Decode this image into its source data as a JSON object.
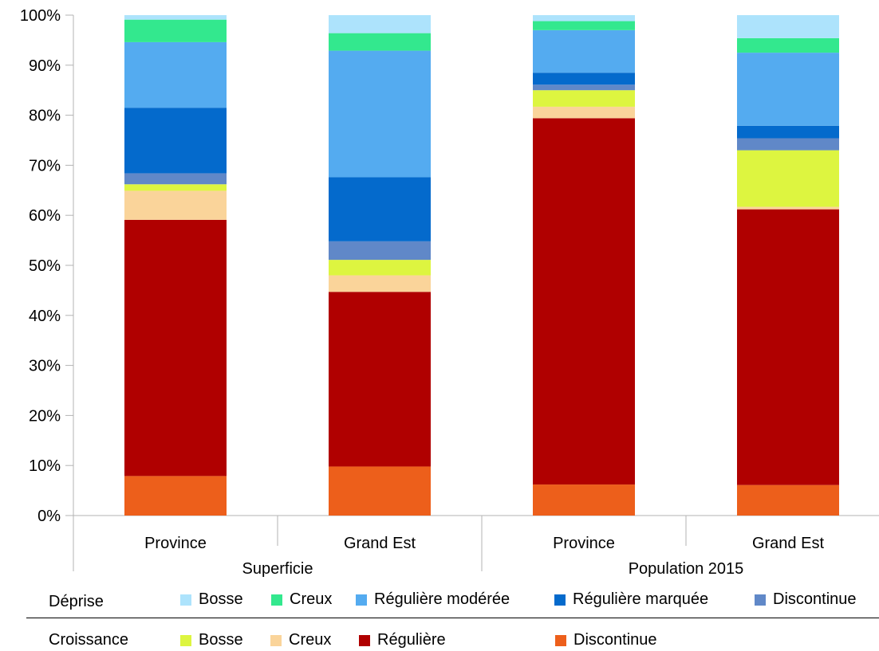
{
  "chart_data": {
    "type": "bar",
    "stacked": true,
    "percent_stacked": true,
    "title": "",
    "xlabel": "",
    "ylabel": "",
    "ylim": [
      0,
      100
    ],
    "y_ticks": [
      "0%",
      "10%",
      "20%",
      "30%",
      "40%",
      "50%",
      "60%",
      "70%",
      "80%",
      "90%",
      "100%"
    ],
    "grid": false,
    "categories": [
      "Province",
      "Grand Est",
      "Province",
      "Grand Est"
    ],
    "category_groups": [
      {
        "label": "Superficie",
        "span": [
          0,
          1
        ]
      },
      {
        "label": "Population 2015",
        "span": [
          2,
          3
        ]
      }
    ],
    "series": [
      {
        "name": "Discontinue",
        "group": "Croissance",
        "color": "#ED5F1B",
        "values": [
          7.9,
          9.8,
          6.2,
          6.1
        ]
      },
      {
        "name": "Régulière",
        "group": "Croissance",
        "color": "#B00000",
        "values": [
          51.2,
          34.9,
          73.2,
          55.1
        ]
      },
      {
        "name": "Creux",
        "group": "Croissance",
        "color": "#FAD49A",
        "values": [
          5.8,
          3.3,
          2.3,
          0.5
        ]
      },
      {
        "name": "Bosse",
        "group": "Croissance",
        "color": "#DDF540",
        "values": [
          1.3,
          3.1,
          3.3,
          11.3
        ]
      },
      {
        "name": "Discontinue",
        "group": "Déprise",
        "color": "#6088C8",
        "values": [
          2.2,
          3.7,
          1.1,
          2.4
        ]
      },
      {
        "name": "Régulière marquée",
        "group": "Déprise",
        "color": "#046ACC",
        "values": [
          13.1,
          12.8,
          2.4,
          2.5
        ]
      },
      {
        "name": "Régulière modérée",
        "group": "Déprise",
        "color": "#54ABF0",
        "values": [
          13.1,
          25.3,
          8.5,
          14.6
        ]
      },
      {
        "name": "Creux",
        "group": "Déprise",
        "color": "#33E88E",
        "values": [
          4.5,
          3.5,
          1.8,
          2.9
        ]
      },
      {
        "name": "Bosse",
        "group": "Déprise",
        "color": "#ADE3FC",
        "values": [
          0.9,
          3.6,
          1.2,
          4.6
        ]
      }
    ],
    "legend": {
      "placement": "bottom",
      "groups": [
        {
          "label": "Déprise",
          "items": [
            "Bosse",
            "Creux",
            "Régulière modérée",
            "Régulière marquée",
            "Discontinue"
          ]
        },
        {
          "label": "Croissance",
          "items": [
            "Bosse",
            "Creux",
            "Régulière",
            "Discontinue"
          ]
        }
      ]
    }
  }
}
